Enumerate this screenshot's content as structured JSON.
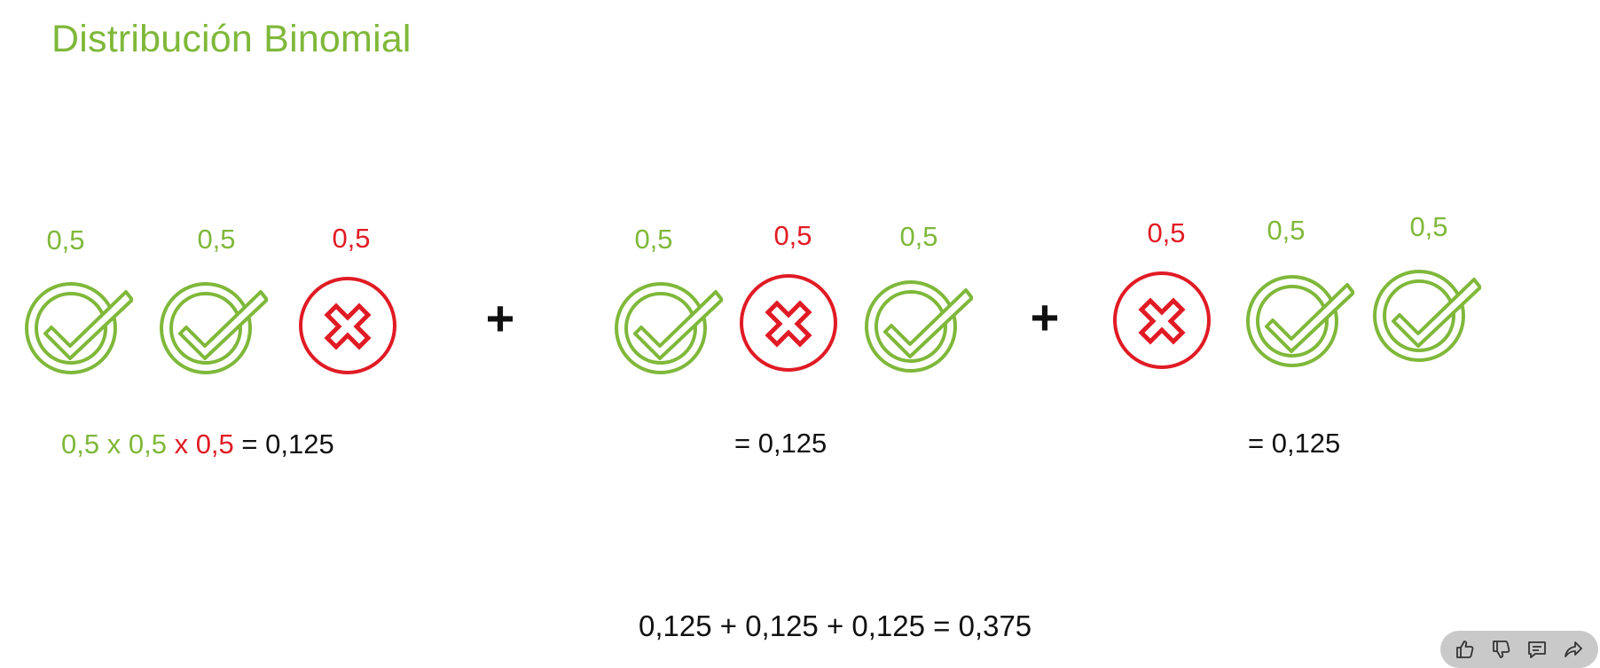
{
  "slide": {
    "title": "Distribución Binomial"
  },
  "groups": [
    {
      "probs": [
        "0,5",
        "0,5",
        "0,5"
      ],
      "outcomes": [
        "success",
        "success",
        "fail"
      ]
    },
    {
      "probs": [
        "0,5",
        "0,5",
        "0,5"
      ],
      "outcomes": [
        "success",
        "fail",
        "success"
      ]
    },
    {
      "probs": [
        "0,5",
        "0,5",
        "0,5"
      ],
      "outcomes": [
        "fail",
        "success",
        "success"
      ]
    }
  ],
  "operators": {
    "plus1": "+",
    "plus2": "+"
  },
  "equation1": {
    "a": "0,5",
    "x1": "x",
    "b": "0,5",
    "x2": "x",
    "c": "0,5",
    "result": "= 0,125"
  },
  "equation2": {
    "result": "= 0,125"
  },
  "equation3": {
    "result": "= 0,125"
  },
  "total": {
    "text": "0,125 + 0,125 + 0,125  = 0,375"
  },
  "colors": {
    "success": "#7fb83a",
    "fail": "#e01b24",
    "toolbar_bg": "#c9c9c9"
  },
  "toolbar": {
    "icons": [
      "thumbs-up-icon",
      "thumbs-down-icon",
      "comment-icon",
      "share-icon"
    ]
  }
}
